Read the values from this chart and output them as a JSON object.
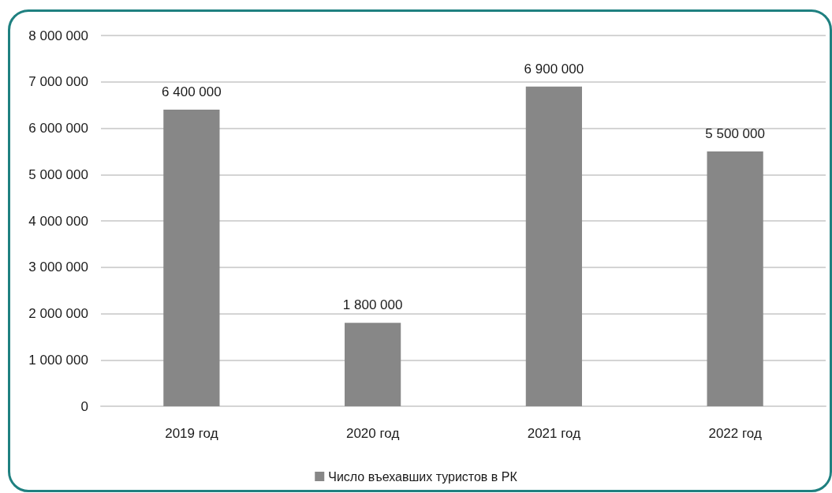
{
  "chart_data": {
    "type": "bar",
    "categories": [
      "2019 год",
      "2020 год",
      "2021 год",
      "2022 год"
    ],
    "series": [
      {
        "name": "Число въехавших туристов в РК",
        "color": "#878787",
        "values": [
          6400000,
          1800000,
          6900000,
          5500000
        ],
        "value_labels": [
          "6 400 000",
          "1 800 000",
          "6 900 000",
          "5 500 000"
        ]
      }
    ],
    "ylim": [
      0,
      8000000
    ],
    "yticks": [
      0,
      {
        "value": 1000000,
        "label": "1 000 000"
      },
      {
        "value": 2000000,
        "label": "2 000 000"
      },
      {
        "value": 3000000,
        "label": "3 000 000"
      },
      {
        "value": 4000000,
        "label": "4 000 000"
      },
      {
        "value": 5000000,
        "label": "5 000 000"
      },
      {
        "value": 6000000,
        "label": "6 000 000"
      },
      {
        "value": 7000000,
        "label": "7 000 000"
      },
      {
        "value": 8000000,
        "label": "8 000 000"
      }
    ],
    "grid": "y",
    "legend": "bottom"
  }
}
